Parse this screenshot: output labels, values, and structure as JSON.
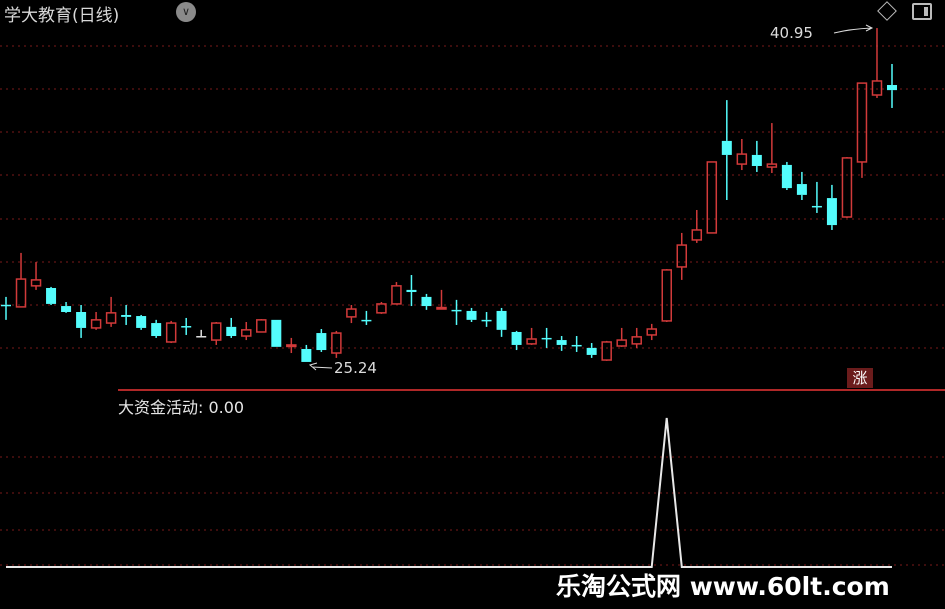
{
  "header": {
    "title": "学大教育(日线)",
    "dropdown_icon": "chevron-down-icon",
    "right_icons": [
      "diamond-icon",
      "window-toggle-icon"
    ]
  },
  "badge": {
    "label": "涨"
  },
  "watermark": "乐淘公式网 www.60lt.com",
  "colors": {
    "up": "#d23a3a",
    "down": "#54fcfc",
    "doji": "#e0e0e0",
    "grid": "#7a1a1a",
    "separator": "#b02828",
    "indicator": "#e8e8e8",
    "background": "#000000"
  },
  "chart_data": [
    {
      "type": "candlestick",
      "title": "学大教育(日线)",
      "ylim": [
        23.92,
        42.27
      ],
      "grid": true,
      "annotations": {
        "max_label": "40.95",
        "min_label": "25.24"
      },
      "ohlc": [
        [
          27.93,
          28.3,
          27.22,
          27.92
        ],
        [
          27.83,
          30.37,
          27.83,
          29.14
        ],
        [
          28.82,
          29.94,
          28.63,
          29.1
        ],
        [
          28.72,
          28.77,
          27.92,
          27.97
        ],
        [
          27.87,
          28.06,
          27.55,
          27.59
        ],
        [
          27.59,
          27.92,
          26.37,
          26.84
        ],
        [
          26.84,
          27.59,
          26.75,
          27.22
        ],
        [
          27.07,
          28.3,
          26.89,
          27.55
        ],
        [
          27.45,
          27.92,
          26.98,
          27.36
        ],
        [
          27.4,
          27.45,
          26.75,
          26.84
        ],
        [
          27.07,
          27.22,
          26.37,
          26.46
        ],
        [
          26.18,
          27.17,
          26.13,
          27.07
        ],
        [
          26.93,
          27.31,
          26.51,
          26.89
        ],
        [
          26.46,
          26.75,
          26.46,
          26.46
        ],
        [
          26.27,
          27.12,
          26.04,
          27.07
        ],
        [
          26.89,
          27.31,
          26.37,
          26.46
        ],
        [
          26.46,
          27.12,
          26.27,
          26.75
        ],
        [
          26.65,
          27.26,
          26.65,
          27.22
        ],
        [
          27.22,
          27.22,
          25.95,
          25.95
        ],
        [
          25.99,
          26.37,
          25.66,
          26.04
        ],
        [
          25.85,
          26.04,
          25.24,
          25.24
        ],
        [
          26.6,
          26.79,
          25.71,
          25.8
        ],
        [
          25.66,
          26.7,
          25.43,
          26.6
        ],
        [
          27.36,
          27.92,
          27.07,
          27.73
        ],
        [
          27.22,
          27.64,
          26.98,
          27.2
        ],
        [
          27.55,
          28.06,
          27.5,
          27.97
        ],
        [
          27.97,
          29.0,
          27.97,
          28.82
        ],
        [
          28.63,
          29.33,
          27.87,
          28.53
        ],
        [
          28.3,
          28.44,
          27.69,
          27.87
        ],
        [
          27.78,
          28.63,
          27.78,
          27.8
        ],
        [
          27.69,
          28.16,
          26.98,
          27.66
        ],
        [
          27.64,
          27.78,
          27.12,
          27.22
        ],
        [
          27.22,
          27.59,
          26.89,
          27.2
        ],
        [
          27.64,
          27.78,
          26.42,
          26.75
        ],
        [
          26.65,
          26.7,
          25.8,
          26.04
        ],
        [
          26.09,
          26.84,
          26.04,
          26.32
        ],
        [
          26.37,
          26.84,
          25.9,
          26.35
        ],
        [
          26.27,
          26.46,
          25.76,
          26.04
        ],
        [
          26.04,
          26.46,
          25.71,
          26.02
        ],
        [
          25.9,
          26.13,
          25.43,
          25.57
        ],
        [
          25.33,
          26.23,
          25.29,
          26.18
        ],
        [
          25.99,
          26.84,
          25.95,
          26.27
        ],
        [
          26.09,
          26.84,
          25.9,
          26.42
        ],
        [
          26.51,
          27.03,
          26.27,
          26.79
        ],
        [
          27.17,
          29.61,
          27.12,
          29.57
        ],
        [
          29.71,
          31.31,
          29.1,
          30.74
        ],
        [
          30.98,
          32.39,
          30.84,
          31.45
        ],
        [
          31.31,
          34.65,
          31.31,
          34.65
        ],
        [
          35.64,
          37.56,
          32.86,
          34.98
        ],
        [
          34.55,
          35.73,
          34.27,
          35.02
        ],
        [
          34.98,
          35.64,
          34.18,
          34.46
        ],
        [
          34.41,
          36.48,
          34.13,
          34.55
        ],
        [
          34.51,
          34.65,
          33.33,
          33.42
        ],
        [
          33.61,
          34.18,
          32.86,
          33.1
        ],
        [
          32.58,
          33.71,
          32.25,
          32.55
        ],
        [
          32.95,
          33.57,
          31.45,
          31.68
        ],
        [
          32.06,
          34.88,
          32.01,
          34.84
        ],
        [
          34.65,
          38.36,
          33.9,
          38.36
        ],
        [
          37.8,
          40.95,
          37.66,
          38.46
        ],
        [
          38.27,
          39.26,
          37.19,
          38.03
        ]
      ]
    },
    {
      "type": "line",
      "label": "大资金活动: 0.00",
      "ylim": [
        0,
        1
      ],
      "values": [
        0,
        0,
        0,
        0,
        0,
        0,
        0,
        0,
        0,
        0,
        0,
        0,
        0,
        0,
        0,
        0,
        0,
        0,
        0,
        0,
        0,
        0,
        0,
        0,
        0,
        0,
        0,
        0,
        0,
        0,
        0,
        0,
        0,
        0,
        0,
        0,
        0,
        0,
        0,
        0,
        0,
        0,
        0,
        0,
        1,
        0,
        0,
        0,
        0,
        0,
        0,
        0,
        0,
        0,
        0,
        0,
        0,
        0,
        0,
        0
      ]
    }
  ]
}
